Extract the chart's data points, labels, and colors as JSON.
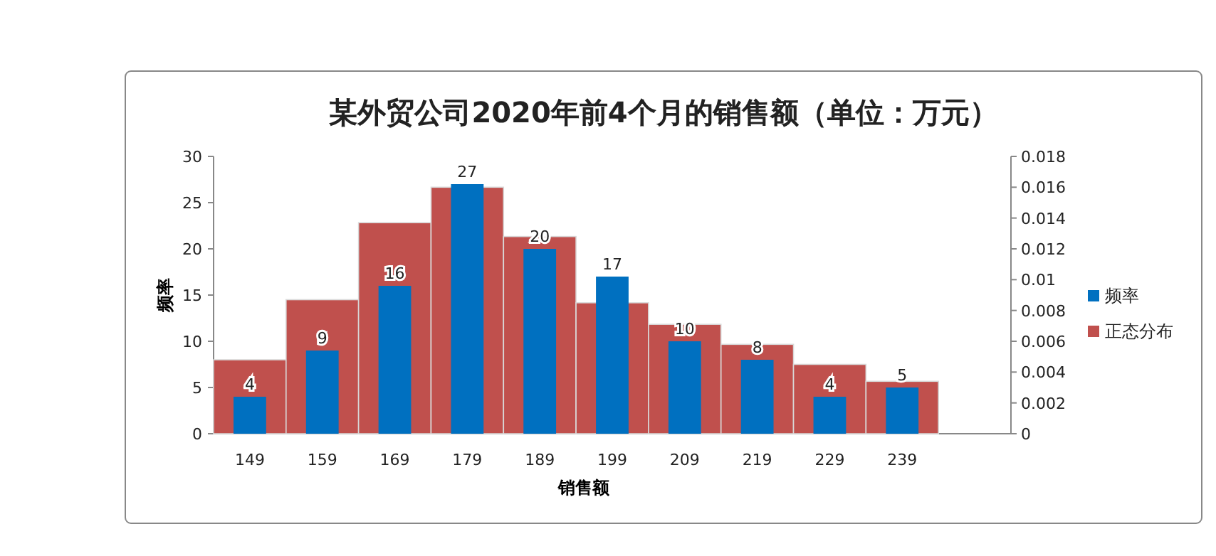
{
  "chart_data": {
    "type": "bar",
    "title": "某外贸公司2020年前4个月的销售额（单位：万元）",
    "xlabel": "销售额",
    "ylabel": "频率",
    "categories": [
      "149",
      "159",
      "169",
      "179",
      "189",
      "199",
      "209",
      "219",
      "229",
      "239"
    ],
    "series": [
      {
        "name": "正态分布",
        "color": "#c0504d",
        "axis": "y2",
        "values": [
          0.0048,
          0.0087,
          0.0137,
          0.016,
          0.0128,
          0.0085,
          0.0071,
          0.0058,
          0.0045,
          0.0034
        ]
      },
      {
        "name": "频率",
        "color": "#0070c0",
        "values": [
          4,
          9,
          16,
          27,
          20,
          17,
          10,
          8,
          4,
          5
        ],
        "value_labels": [
          "4",
          "9",
          "16",
          "27",
          "20",
          "17",
          "10",
          "8",
          "4",
          "5"
        ]
      }
    ],
    "ylim": [
      0,
      30
    ],
    "yticks": [
      0,
      5,
      10,
      15,
      20,
      25,
      30
    ],
    "y2lim": [
      0,
      0.018
    ],
    "y2ticks": [
      0,
      0.002,
      0.004,
      0.006,
      0.008,
      0.01,
      0.012,
      0.014,
      0.016,
      0.018
    ],
    "legend": "right"
  }
}
